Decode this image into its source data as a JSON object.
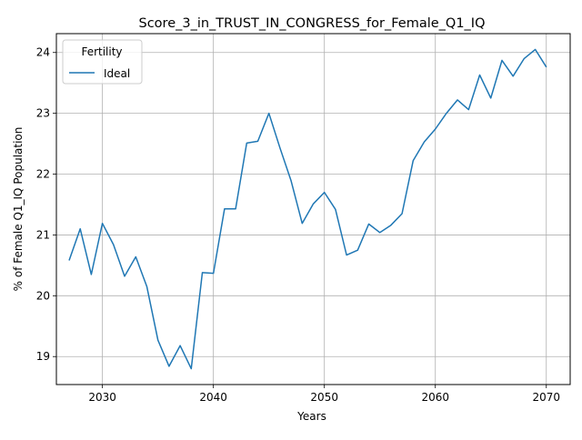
{
  "chart_data": {
    "type": "line",
    "title": "Score_3_in_TRUST_IN_CONGRESS_for_Female_Q1_IQ",
    "xlabel": "Years",
    "ylabel": "% of Female Q1_IQ Population",
    "xlim": [
      2025.85,
      2072.15
    ],
    "ylim": [
      18.54,
      24.31
    ],
    "xticks": [
      2030,
      2040,
      2050,
      2060,
      2070
    ],
    "yticks": [
      19,
      20,
      21,
      22,
      23,
      24
    ],
    "grid": true,
    "legend": {
      "title": "Fertility",
      "position": "top-left"
    },
    "series": [
      {
        "name": "Ideal",
        "color": "#1f77b4",
        "x": [
          2027,
          2028,
          2029,
          2030,
          2031,
          2032,
          2033,
          2034,
          2035,
          2036,
          2037,
          2038,
          2039,
          2040,
          2041,
          2042,
          2043,
          2044,
          2045,
          2046,
          2047,
          2048,
          2049,
          2050,
          2051,
          2052,
          2053,
          2054,
          2055,
          2056,
          2057,
          2058,
          2059,
          2060,
          2061,
          2062,
          2063,
          2064,
          2065,
          2066,
          2067,
          2068,
          2069,
          2070
        ],
        "y": [
          20.58,
          21.1,
          20.35,
          21.19,
          20.84,
          20.32,
          20.64,
          20.15,
          19.27,
          18.84,
          19.18,
          18.8,
          20.38,
          20.37,
          21.43,
          21.43,
          22.51,
          22.54,
          23.0,
          22.43,
          21.89,
          21.19,
          21.51,
          21.7,
          21.42,
          20.67,
          20.75,
          21.18,
          21.04,
          21.16,
          21.35,
          22.22,
          22.53,
          22.74,
          23.0,
          23.22,
          23.06,
          23.63,
          23.25,
          23.87,
          23.61,
          23.9,
          24.05,
          23.76
        ]
      }
    ]
  }
}
